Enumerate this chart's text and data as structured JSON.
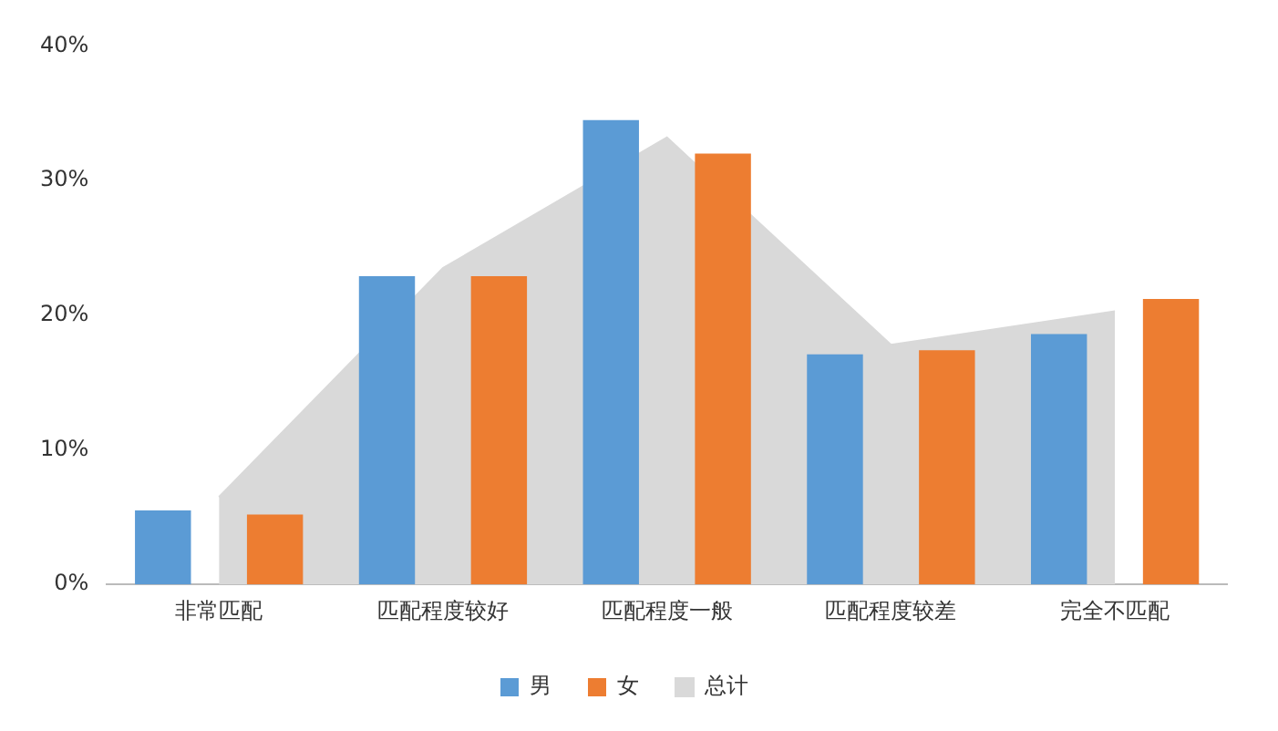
{
  "chart_data": {
    "type": "bar",
    "categories": [
      "非常匹配",
      "匹配程度较好",
      "匹配程度一般",
      "匹配程度较差",
      "完全不匹配"
    ],
    "series": [
      {
        "name": "男",
        "color": "#5b9bd5",
        "values": [
          5.5,
          22.9,
          34.5,
          17.1,
          18.6
        ]
      },
      {
        "name": "女",
        "color": "#ed7d31",
        "values": [
          5.2,
          22.9,
          32.0,
          17.4,
          21.2
        ]
      },
      {
        "name": "总计",
        "type": "area",
        "color": "#d9d9d9",
        "values": [
          6.5,
          23.5,
          33.2,
          17.8,
          20.3
        ]
      }
    ],
    "ylim": [
      0,
      40
    ],
    "yticks": [
      {
        "value": 0,
        "label": "0%"
      },
      {
        "value": 10,
        "label": "10%"
      },
      {
        "value": 20,
        "label": "20%"
      },
      {
        "value": 30,
        "label": "30%"
      },
      {
        "value": 40,
        "label": "40%"
      }
    ],
    "grid": false,
    "legend": "bottom"
  }
}
